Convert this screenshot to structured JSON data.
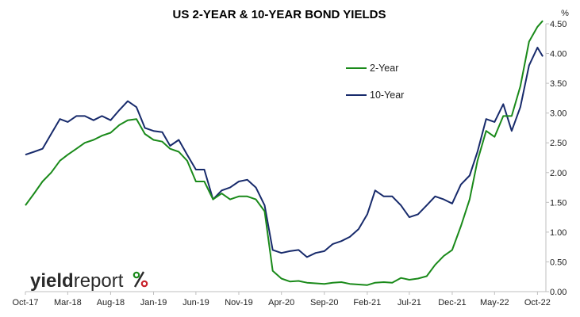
{
  "chart_data": {
    "type": "line",
    "title": "US 2-YEAR & 10-YEAR BOND YIELDS",
    "y_unit": "%",
    "ylim": [
      0,
      4.5
    ],
    "y_ticks": [
      "0.00",
      "0.50",
      "1.00",
      "1.50",
      "2.00",
      "2.50",
      "3.00",
      "3.50",
      "4.00",
      "4.50"
    ],
    "x_range": [
      "2017-10-01",
      "2022-10-31"
    ],
    "x_ticks": [
      {
        "date": "2017-10-01",
        "label": "Oct-17"
      },
      {
        "date": "2018-03-01",
        "label": "Mar-18"
      },
      {
        "date": "2018-08-01",
        "label": "Aug-18"
      },
      {
        "date": "2019-01-01",
        "label": "Jan-19"
      },
      {
        "date": "2019-06-01",
        "label": "Jun-19"
      },
      {
        "date": "2019-11-01",
        "label": "Nov-19"
      },
      {
        "date": "2020-04-01",
        "label": "Apr-20"
      },
      {
        "date": "2020-09-01",
        "label": "Sep-20"
      },
      {
        "date": "2021-02-01",
        "label": "Feb-21"
      },
      {
        "date": "2021-07-01",
        "label": "Jul-21"
      },
      {
        "date": "2021-12-01",
        "label": "Dec-21"
      },
      {
        "date": "2022-05-01",
        "label": "May-22"
      },
      {
        "date": "2022-10-01",
        "label": "Oct-22"
      }
    ],
    "grid": false,
    "legend_position": "top-right",
    "series": [
      {
        "name": "2-Year",
        "color": "#1a8a1a",
        "points": [
          [
            "2017-10-01",
            1.45
          ],
          [
            "2017-11-01",
            1.65
          ],
          [
            "2017-12-01",
            1.85
          ],
          [
            "2018-01-01",
            2.0
          ],
          [
            "2018-02-01",
            2.2
          ],
          [
            "2018-03-01",
            2.3
          ],
          [
            "2018-04-01",
            2.4
          ],
          [
            "2018-05-01",
            2.5
          ],
          [
            "2018-06-01",
            2.55
          ],
          [
            "2018-07-01",
            2.62
          ],
          [
            "2018-08-01",
            2.67
          ],
          [
            "2018-09-01",
            2.8
          ],
          [
            "2018-10-01",
            2.88
          ],
          [
            "2018-11-01",
            2.9
          ],
          [
            "2018-12-01",
            2.65
          ],
          [
            "2019-01-01",
            2.55
          ],
          [
            "2019-02-01",
            2.52
          ],
          [
            "2019-03-01",
            2.4
          ],
          [
            "2019-04-01",
            2.35
          ],
          [
            "2019-05-01",
            2.2
          ],
          [
            "2019-06-01",
            1.85
          ],
          [
            "2019-07-01",
            1.85
          ],
          [
            "2019-08-01",
            1.55
          ],
          [
            "2019-09-01",
            1.65
          ],
          [
            "2019-10-01",
            1.55
          ],
          [
            "2019-11-01",
            1.6
          ],
          [
            "2019-12-01",
            1.6
          ],
          [
            "2020-01-01",
            1.55
          ],
          [
            "2020-02-01",
            1.35
          ],
          [
            "2020-03-01",
            0.35
          ],
          [
            "2020-04-01",
            0.22
          ],
          [
            "2020-05-01",
            0.17
          ],
          [
            "2020-06-01",
            0.18
          ],
          [
            "2020-07-01",
            0.15
          ],
          [
            "2020-08-01",
            0.14
          ],
          [
            "2020-09-01",
            0.13
          ],
          [
            "2020-10-01",
            0.15
          ],
          [
            "2020-11-01",
            0.16
          ],
          [
            "2020-12-01",
            0.13
          ],
          [
            "2021-01-01",
            0.12
          ],
          [
            "2021-02-01",
            0.11
          ],
          [
            "2021-03-01",
            0.15
          ],
          [
            "2021-04-01",
            0.16
          ],
          [
            "2021-05-01",
            0.15
          ],
          [
            "2021-06-01",
            0.23
          ],
          [
            "2021-07-01",
            0.2
          ],
          [
            "2021-08-01",
            0.22
          ],
          [
            "2021-09-01",
            0.26
          ],
          [
            "2021-10-01",
            0.45
          ],
          [
            "2021-11-01",
            0.6
          ],
          [
            "2021-12-01",
            0.7
          ],
          [
            "2022-01-01",
            1.1
          ],
          [
            "2022-02-01",
            1.55
          ],
          [
            "2022-03-01",
            2.2
          ],
          [
            "2022-04-01",
            2.7
          ],
          [
            "2022-05-01",
            2.6
          ],
          [
            "2022-06-01",
            2.95
          ],
          [
            "2022-07-01",
            2.95
          ],
          [
            "2022-08-01",
            3.45
          ],
          [
            "2022-09-01",
            4.2
          ],
          [
            "2022-10-01",
            4.45
          ],
          [
            "2022-10-20",
            4.55
          ]
        ]
      },
      {
        "name": "10-Year",
        "color": "#172a6b",
        "points": [
          [
            "2017-10-01",
            2.3
          ],
          [
            "2017-11-01",
            2.35
          ],
          [
            "2017-12-01",
            2.4
          ],
          [
            "2018-01-01",
            2.65
          ],
          [
            "2018-02-01",
            2.9
          ],
          [
            "2018-03-01",
            2.85
          ],
          [
            "2018-04-01",
            2.95
          ],
          [
            "2018-05-01",
            2.95
          ],
          [
            "2018-06-01",
            2.88
          ],
          [
            "2018-07-01",
            2.95
          ],
          [
            "2018-08-01",
            2.88
          ],
          [
            "2018-09-01",
            3.05
          ],
          [
            "2018-10-01",
            3.2
          ],
          [
            "2018-11-01",
            3.1
          ],
          [
            "2018-12-01",
            2.75
          ],
          [
            "2019-01-01",
            2.7
          ],
          [
            "2019-02-01",
            2.68
          ],
          [
            "2019-03-01",
            2.45
          ],
          [
            "2019-04-01",
            2.55
          ],
          [
            "2019-05-01",
            2.3
          ],
          [
            "2019-06-01",
            2.05
          ],
          [
            "2019-07-01",
            2.05
          ],
          [
            "2019-08-01",
            1.55
          ],
          [
            "2019-09-01",
            1.7
          ],
          [
            "2019-10-01",
            1.75
          ],
          [
            "2019-11-01",
            1.85
          ],
          [
            "2019-12-01",
            1.88
          ],
          [
            "2020-01-01",
            1.75
          ],
          [
            "2020-02-01",
            1.45
          ],
          [
            "2020-03-01",
            0.7
          ],
          [
            "2020-04-01",
            0.65
          ],
          [
            "2020-05-01",
            0.68
          ],
          [
            "2020-06-01",
            0.7
          ],
          [
            "2020-07-01",
            0.58
          ],
          [
            "2020-08-01",
            0.65
          ],
          [
            "2020-09-01",
            0.68
          ],
          [
            "2020-10-01",
            0.8
          ],
          [
            "2020-11-01",
            0.85
          ],
          [
            "2020-12-01",
            0.92
          ],
          [
            "2021-01-01",
            1.05
          ],
          [
            "2021-02-01",
            1.3
          ],
          [
            "2021-03-01",
            1.7
          ],
          [
            "2021-04-01",
            1.6
          ],
          [
            "2021-05-01",
            1.6
          ],
          [
            "2021-06-01",
            1.45
          ],
          [
            "2021-07-01",
            1.25
          ],
          [
            "2021-08-01",
            1.3
          ],
          [
            "2021-09-01",
            1.45
          ],
          [
            "2021-10-01",
            1.6
          ],
          [
            "2021-11-01",
            1.55
          ],
          [
            "2021-12-01",
            1.48
          ],
          [
            "2022-01-01",
            1.8
          ],
          [
            "2022-02-01",
            1.95
          ],
          [
            "2022-03-01",
            2.35
          ],
          [
            "2022-04-01",
            2.9
          ],
          [
            "2022-05-01",
            2.85
          ],
          [
            "2022-06-01",
            3.15
          ],
          [
            "2022-07-01",
            2.7
          ],
          [
            "2022-08-01",
            3.1
          ],
          [
            "2022-09-01",
            3.8
          ],
          [
            "2022-10-01",
            4.1
          ],
          [
            "2022-10-20",
            3.95
          ]
        ]
      }
    ]
  },
  "branding": {
    "logo_word_1": "yield",
    "logo_word_2": "report",
    "logo_symbol": "%"
  }
}
